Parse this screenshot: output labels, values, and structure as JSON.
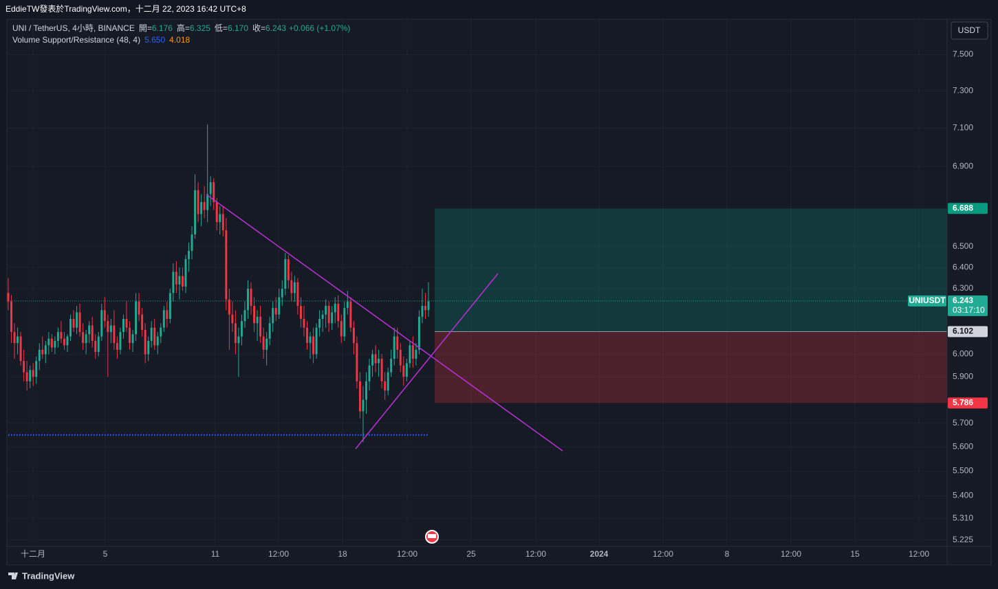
{
  "header": {
    "title": "EddieTW發表於TradingView.com，十二月 22, 2023 16:42 UTC+8"
  },
  "footer": {
    "brand": "TradingView"
  },
  "chart_data": {
    "type": "candlestick",
    "symbol": "UNI / TetherUS, 4小時, BINANCE",
    "ohlc": [
      {
        "label": "開=",
        "value": "6.176"
      },
      {
        "label": "高=",
        "value": "6.325"
      },
      {
        "label": "低=",
        "value": "6.170"
      },
      {
        "label": "收=",
        "value": "6.243"
      }
    ],
    "change": "+0.066 (+1.07%)",
    "indicator": {
      "name": "Volume Support/Resistance (48, 4)",
      "support": {
        "value": 5.65,
        "label": "5.650"
      },
      "resistance": 4.018,
      "support_color": "#2962ff",
      "resistance_color": "#ff9800"
    },
    "currency": "USDT",
    "ticker": "UNIUSDT",
    "last": 6.243,
    "countdown": "03:17:10",
    "position": {
      "target": 6.688,
      "entry": 6.102,
      "stop": 5.786
    },
    "log_scale": true,
    "grid": true,
    "up_color": "#22ab94",
    "down_color": "#f23645",
    "ylim": [
      5.2,
      7.7
    ],
    "yticks": [
      {
        "value": 7.5,
        "label": "7.500"
      },
      {
        "value": 7.3,
        "label": "7.300"
      },
      {
        "value": 7.1,
        "label": "7.100"
      },
      {
        "value": 6.9,
        "label": "6.900"
      },
      {
        "value": 6.5,
        "label": "6.500"
      },
      {
        "value": 6.4,
        "label": "6.400"
      },
      {
        "value": 6.3,
        "label": "6.300"
      },
      {
        "value": 6,
        "label": "6.000"
      },
      {
        "value": 5.9,
        "label": "5.900"
      },
      {
        "value": 5.7,
        "label": "5.700"
      },
      {
        "value": 5.6,
        "label": "5.600"
      },
      {
        "value": 5.5,
        "label": "5.500"
      },
      {
        "value": 5.4,
        "label": "5.400"
      },
      {
        "value": 5.31,
        "label": "5.310"
      },
      5.225
    ],
    "x_labels": [
      "十二月",
      "5",
      "11",
      "12:00",
      "18",
      "12:00",
      "25",
      "12:00",
      "2024",
      "12:00",
      "8",
      "12:00",
      "15",
      "12:00"
    ],
    "candles": [
      [
        6.28,
        6.35,
        6.2,
        6.24
      ],
      [
        6.24,
        6.27,
        6.05,
        6.1
      ],
      [
        6.1,
        6.14,
        5.98,
        6.05
      ],
      [
        6.05,
        6.12,
        6.0,
        6.08
      ],
      [
        6.08,
        6.1,
        5.95,
        5.97
      ],
      [
        5.97,
        6.02,
        5.88,
        5.92
      ],
      [
        5.92,
        5.97,
        5.84,
        5.88
      ],
      [
        5.88,
        5.95,
        5.85,
        5.93
      ],
      [
        5.93,
        5.96,
        5.86,
        5.9
      ],
      [
        5.9,
        5.99,
        5.87,
        5.97
      ],
      [
        5.97,
        6.05,
        5.93,
        6.02
      ],
      [
        6.02,
        6.08,
        5.98,
        6.0
      ],
      [
        6.0,
        6.06,
        5.96,
        6.04
      ],
      [
        6.04,
        6.1,
        6.0,
        6.07
      ],
      [
        6.07,
        6.09,
        6.01,
        6.03
      ],
      [
        6.03,
        6.08,
        6.0,
        6.06
      ],
      [
        6.06,
        6.12,
        6.03,
        6.1
      ],
      [
        6.1,
        6.15,
        6.05,
        6.07
      ],
      [
        6.07,
        6.1,
        6.02,
        6.04
      ],
      [
        6.04,
        6.09,
        6.01,
        6.08
      ],
      [
        6.08,
        6.18,
        6.06,
        6.16
      ],
      [
        6.16,
        6.2,
        6.1,
        6.12
      ],
      [
        6.12,
        6.22,
        6.09,
        6.19
      ],
      [
        6.19,
        6.23,
        6.08,
        6.1
      ],
      [
        6.1,
        6.14,
        6.02,
        6.05
      ],
      [
        6.05,
        6.11,
        6.0,
        6.09
      ],
      [
        6.09,
        6.15,
        6.05,
        6.13
      ],
      [
        6.13,
        6.17,
        6.03,
        6.06
      ],
      [
        6.06,
        6.09,
        5.98,
        6.01
      ],
      [
        6.01,
        6.1,
        5.99,
        6.08
      ],
      [
        6.08,
        6.23,
        6.06,
        6.2
      ],
      [
        6.2,
        6.26,
        6.12,
        6.15
      ],
      [
        6.15,
        6.18,
        5.9,
        6.1
      ],
      [
        6.1,
        6.16,
        6.05,
        6.13
      ],
      [
        6.13,
        6.2,
        6.02,
        6.05
      ],
      [
        6.05,
        6.08,
        5.98,
        6.02
      ],
      [
        6.02,
        6.12,
        6.0,
        6.1
      ],
      [
        6.1,
        6.18,
        6.07,
        6.16
      ],
      [
        6.16,
        6.24,
        6.1,
        6.12
      ],
      [
        6.12,
        6.15,
        6.02,
        6.05
      ],
      [
        6.05,
        6.11,
        6.01,
        6.09
      ],
      [
        6.09,
        6.28,
        6.06,
        6.24
      ],
      [
        6.24,
        6.28,
        6.15,
        6.18
      ],
      [
        6.18,
        6.21,
        6.08,
        6.11
      ],
      [
        6.11,
        6.14,
        5.96,
        6.0
      ],
      [
        6.0,
        6.08,
        5.97,
        6.06
      ],
      [
        6.06,
        6.15,
        6.03,
        6.12
      ],
      [
        6.12,
        6.16,
        6.02,
        6.04
      ],
      [
        6.04,
        6.1,
        6.0,
        6.08
      ],
      [
        6.08,
        6.14,
        6.05,
        6.12
      ],
      [
        6.12,
        6.22,
        6.1,
        6.2
      ],
      [
        6.2,
        6.24,
        6.12,
        6.16
      ],
      [
        6.16,
        6.3,
        6.14,
        6.28
      ],
      [
        6.28,
        6.42,
        6.24,
        6.38
      ],
      [
        6.38,
        6.43,
        6.28,
        6.32
      ],
      [
        6.32,
        6.4,
        6.25,
        6.36
      ],
      [
        6.36,
        6.4,
        6.29,
        6.31
      ],
      [
        6.31,
        6.46,
        6.28,
        6.44
      ],
      [
        6.44,
        6.52,
        6.38,
        6.48
      ],
      [
        6.48,
        6.6,
        6.44,
        6.56
      ],
      [
        6.56,
        6.86,
        6.54,
        6.78
      ],
      [
        6.78,
        6.82,
        6.62,
        6.66
      ],
      [
        6.66,
        6.76,
        6.6,
        6.72
      ],
      [
        6.72,
        6.8,
        6.64,
        6.68
      ],
      [
        6.68,
        7.12,
        6.62,
        6.76
      ],
      [
        6.76,
        6.85,
        6.7,
        6.82
      ],
      [
        6.82,
        6.84,
        6.68,
        6.72
      ],
      [
        6.72,
        6.74,
        6.58,
        6.62
      ],
      [
        6.62,
        6.7,
        6.56,
        6.66
      ],
      [
        6.66,
        6.7,
        6.55,
        6.58
      ],
      [
        6.58,
        6.64,
        6.2,
        6.25
      ],
      [
        6.25,
        6.3,
        6.02,
        6.18
      ],
      [
        6.18,
        6.24,
        6.1,
        6.14
      ],
      [
        6.14,
        6.2,
        6.0,
        6.05
      ],
      [
        6.05,
        6.12,
        5.9,
        6.08
      ],
      [
        6.08,
        6.18,
        6.04,
        6.15
      ],
      [
        6.15,
        6.24,
        6.12,
        6.2
      ],
      [
        6.2,
        6.34,
        6.16,
        6.3
      ],
      [
        6.3,
        6.33,
        6.18,
        6.22
      ],
      [
        6.22,
        6.26,
        6.1,
        6.14
      ],
      [
        6.14,
        6.2,
        6.06,
        6.17
      ],
      [
        6.17,
        6.22,
        6.05,
        6.08
      ],
      [
        6.08,
        6.12,
        5.98,
        6.02
      ],
      [
        6.02,
        6.1,
        5.95,
        6.07
      ],
      [
        6.07,
        6.17,
        6.04,
        6.14
      ],
      [
        6.14,
        6.24,
        6.1,
        6.21
      ],
      [
        6.21,
        6.26,
        6.15,
        6.18
      ],
      [
        6.18,
        6.3,
        6.16,
        6.26
      ],
      [
        6.26,
        6.34,
        6.22,
        6.3
      ],
      [
        6.3,
        6.47,
        6.27,
        6.44
      ],
      [
        6.44,
        6.46,
        6.3,
        6.34
      ],
      [
        6.34,
        6.38,
        6.24,
        6.28
      ],
      [
        6.28,
        6.36,
        6.24,
        6.33
      ],
      [
        6.33,
        6.35,
        6.18,
        6.22
      ],
      [
        6.22,
        6.26,
        6.12,
        6.16
      ],
      [
        6.16,
        6.22,
        6.08,
        6.12
      ],
      [
        6.12,
        6.15,
        6.02,
        6.05
      ],
      [
        6.05,
        6.1,
        5.98,
        6.08
      ],
      [
        6.08,
        6.12,
        5.96,
        6.0
      ],
      [
        6.0,
        6.14,
        5.98,
        6.12
      ],
      [
        6.12,
        6.2,
        6.08,
        6.16
      ],
      [
        6.16,
        6.2,
        6.1,
        6.18
      ],
      [
        6.18,
        6.25,
        6.12,
        6.22
      ],
      [
        6.22,
        6.24,
        6.1,
        6.14
      ],
      [
        6.14,
        6.22,
        6.11,
        6.19
      ],
      [
        6.19,
        6.26,
        6.14,
        6.23
      ],
      [
        6.23,
        6.27,
        6.12,
        6.15
      ],
      [
        6.15,
        6.18,
        6.05,
        6.08
      ],
      [
        6.08,
        6.24,
        6.06,
        6.21
      ],
      [
        6.21,
        6.29,
        6.18,
        6.24
      ],
      [
        6.24,
        6.26,
        6.1,
        6.12
      ],
      [
        6.12,
        6.15,
        6.0,
        6.05
      ],
      [
        6.05,
        6.08,
        5.85,
        5.88
      ],
      [
        5.88,
        5.92,
        5.72,
        5.75
      ],
      [
        5.75,
        5.86,
        5.62,
        5.8
      ],
      [
        5.8,
        5.92,
        5.74,
        5.88
      ],
      [
        5.88,
        5.98,
        5.84,
        5.95
      ],
      [
        5.95,
        6.02,
        5.9,
        6.0
      ],
      [
        6.0,
        6.04,
        5.92,
        5.96
      ],
      [
        5.96,
        6.02,
        5.9,
        5.98
      ],
      [
        5.98,
        6.0,
        5.85,
        5.88
      ],
      [
        5.88,
        5.92,
        5.8,
        5.84
      ],
      [
        5.84,
        5.94,
        5.82,
        5.92
      ],
      [
        5.92,
        6.02,
        5.9,
        5.98
      ],
      [
        5.98,
        6.12,
        5.95,
        6.08
      ],
      [
        6.08,
        6.12,
        5.98,
        6.02
      ],
      [
        6.02,
        6.05,
        5.92,
        5.95
      ],
      [
        5.95,
        5.99,
        5.86,
        5.9
      ],
      [
        5.9,
        5.98,
        5.88,
        5.96
      ],
      [
        5.96,
        6.06,
        5.94,
        6.04
      ],
      [
        6.04,
        6.08,
        5.94,
        5.98
      ],
      [
        5.98,
        6.05,
        5.95,
        6.02
      ],
      [
        6.02,
        6.2,
        6.0,
        6.17
      ],
      [
        6.17,
        6.3,
        6.14,
        6.22
      ],
      [
        6.22,
        6.28,
        6.16,
        6.2
      ],
      [
        6.2,
        6.33,
        6.17,
        6.24
      ]
    ]
  }
}
